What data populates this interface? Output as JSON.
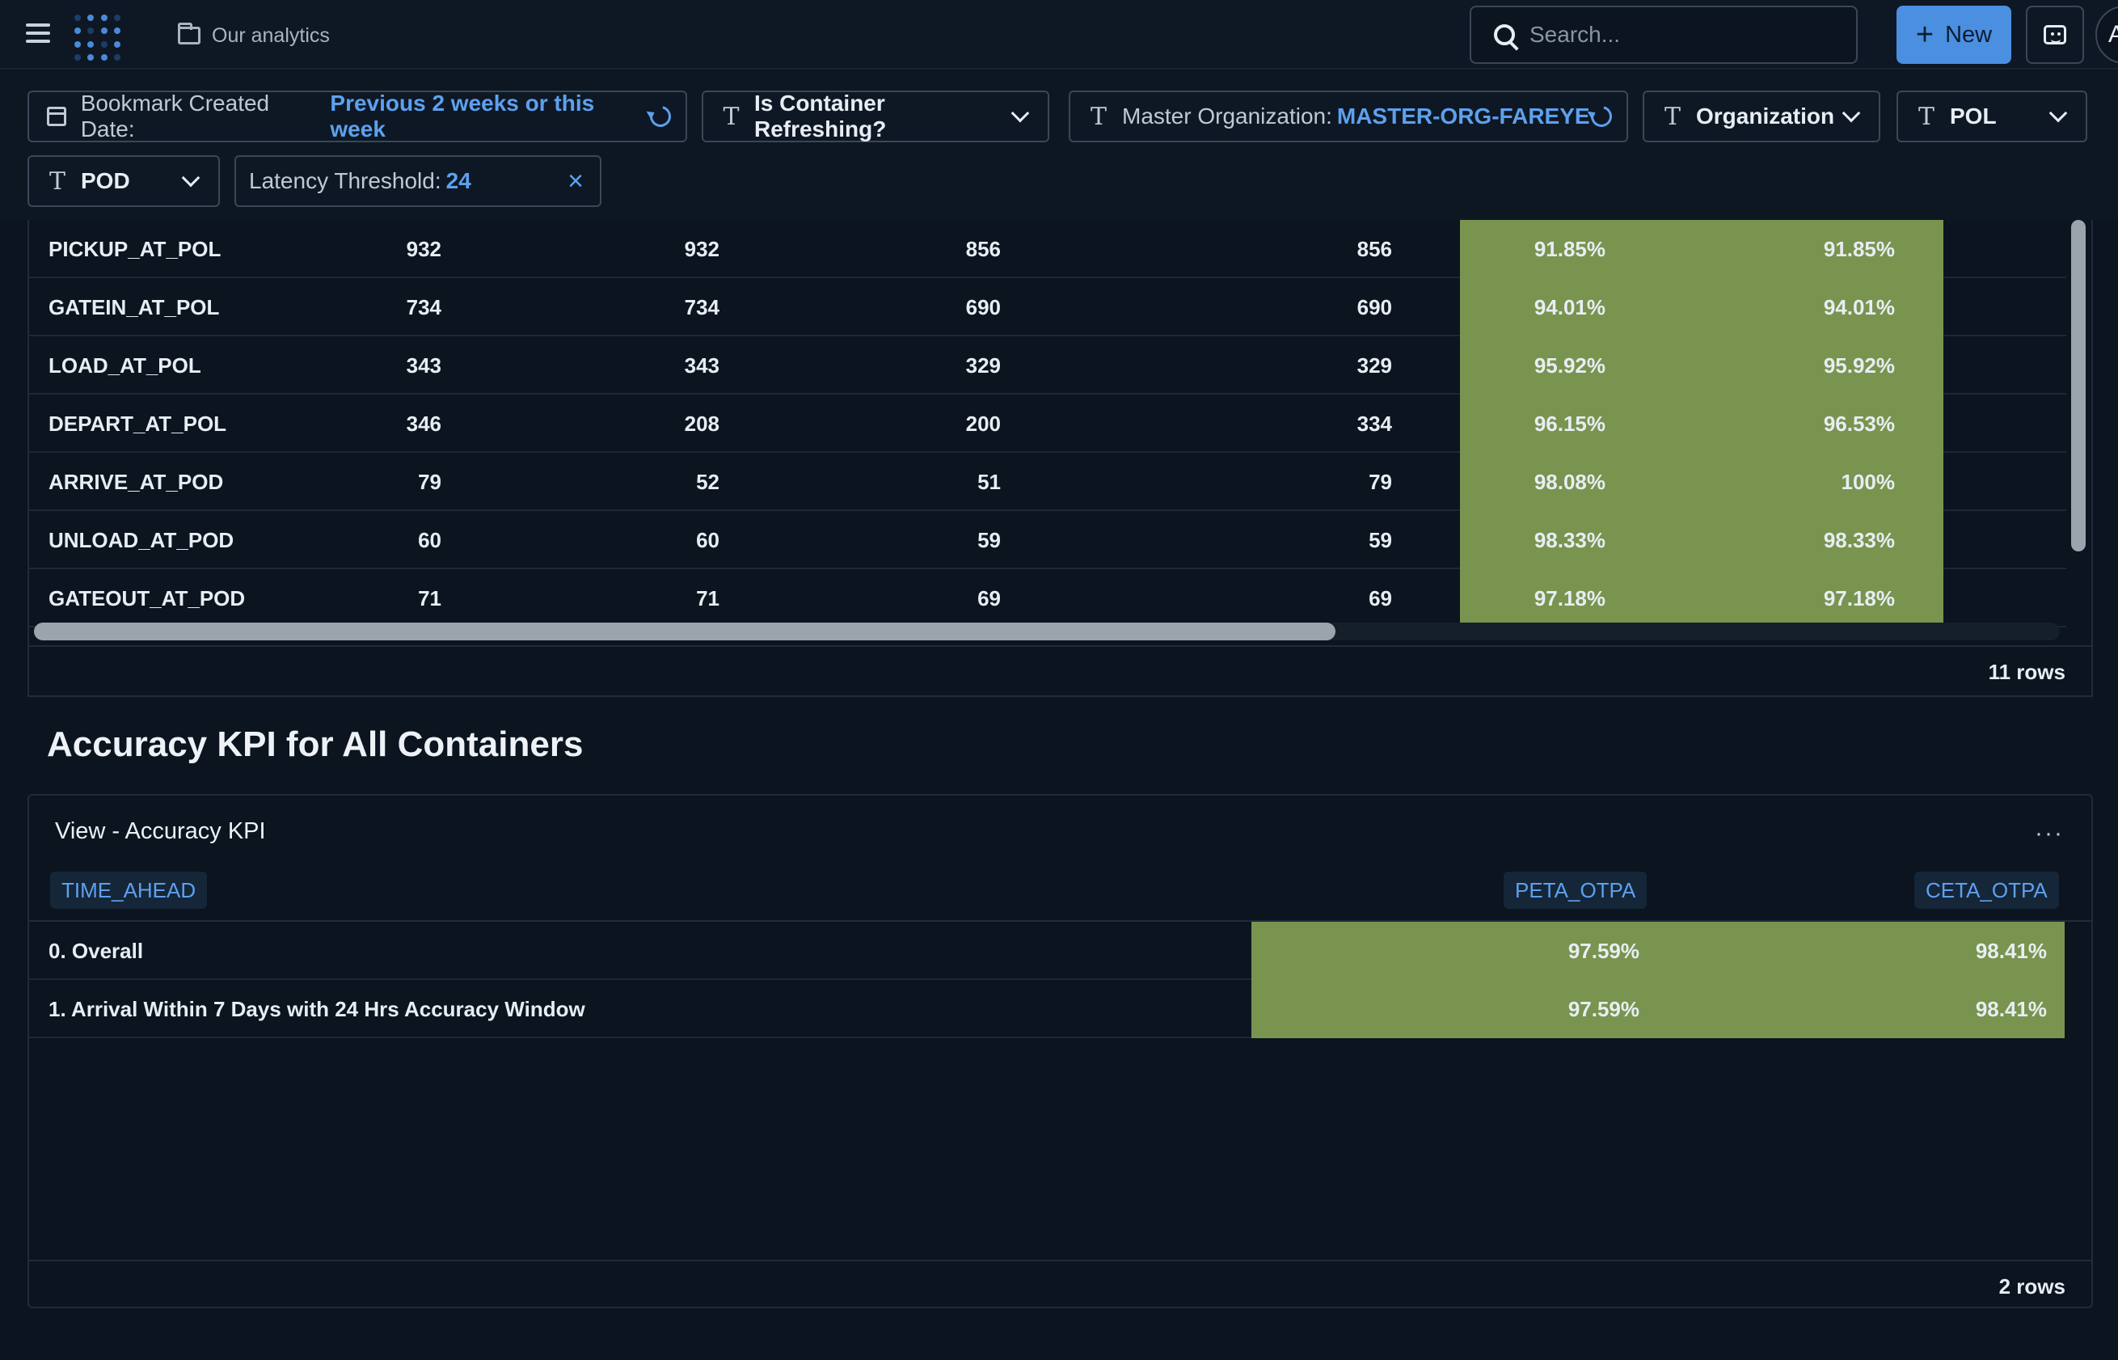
{
  "header": {
    "breadcrumb": "Our analytics",
    "search_placeholder": "Search...",
    "new_label": "New",
    "avatar_initial": "A"
  },
  "filters": {
    "bookmark": {
      "label": "Bookmark Created Date: ",
      "value": "Previous 2 weeks or this week"
    },
    "refreshing": {
      "label": "Is Container Refreshing?"
    },
    "master_org": {
      "label": "Master Organization: ",
      "value": "MASTER-ORG-FAREYE"
    },
    "organization": {
      "label": "Organization"
    },
    "pol": {
      "label": "POL"
    },
    "pod": {
      "label": "POD"
    },
    "latency": {
      "label": "Latency Threshold: ",
      "value": "24"
    }
  },
  "table1": {
    "rows": [
      {
        "name": "PICKUP_AT_POL",
        "c1": "932",
        "c2": "932",
        "c3": "856",
        "c4": "856",
        "p1": "91.85%",
        "p2": "91.85%"
      },
      {
        "name": "GATEIN_AT_POL",
        "c1": "734",
        "c2": "734",
        "c3": "690",
        "c4": "690",
        "p1": "94.01%",
        "p2": "94.01%"
      },
      {
        "name": "LOAD_AT_POL",
        "c1": "343",
        "c2": "343",
        "c3": "329",
        "c4": "329",
        "p1": "95.92%",
        "p2": "95.92%"
      },
      {
        "name": "DEPART_AT_POL",
        "c1": "346",
        "c2": "208",
        "c3": "200",
        "c4": "334",
        "p1": "96.15%",
        "p2": "96.53%"
      },
      {
        "name": "ARRIVE_AT_POD",
        "c1": "79",
        "c2": "52",
        "c3": "51",
        "c4": "79",
        "p1": "98.08%",
        "p2": "100%"
      },
      {
        "name": "UNLOAD_AT_POD",
        "c1": "60",
        "c2": "60",
        "c3": "59",
        "c4": "59",
        "p1": "98.33%",
        "p2": "98.33%"
      },
      {
        "name": "GATEOUT_AT_POD",
        "c1": "71",
        "c2": "71",
        "c3": "69",
        "c4": "69",
        "p1": "97.18%",
        "p2": "97.18%"
      }
    ],
    "row_count": "11 rows"
  },
  "section_title": "Accuracy KPI for All Containers",
  "table2": {
    "title": "View - Accuracy KPI",
    "headers": [
      "TIME_AHEAD",
      "PETA_OTPA",
      "CETA_OTPA"
    ],
    "rows": [
      {
        "label": "0. Overall",
        "peta": "97.59%",
        "ceta": "98.41%"
      },
      {
        "label": "1. Arrival Within 7 Days with 24 Hrs Accuracy Window",
        "peta": "97.59%",
        "ceta": "98.41%"
      }
    ],
    "row_count": "2 rows"
  },
  "colors": {
    "accent": "#4a8fe0",
    "highlight": "#78944f",
    "background": "#0b141f"
  }
}
